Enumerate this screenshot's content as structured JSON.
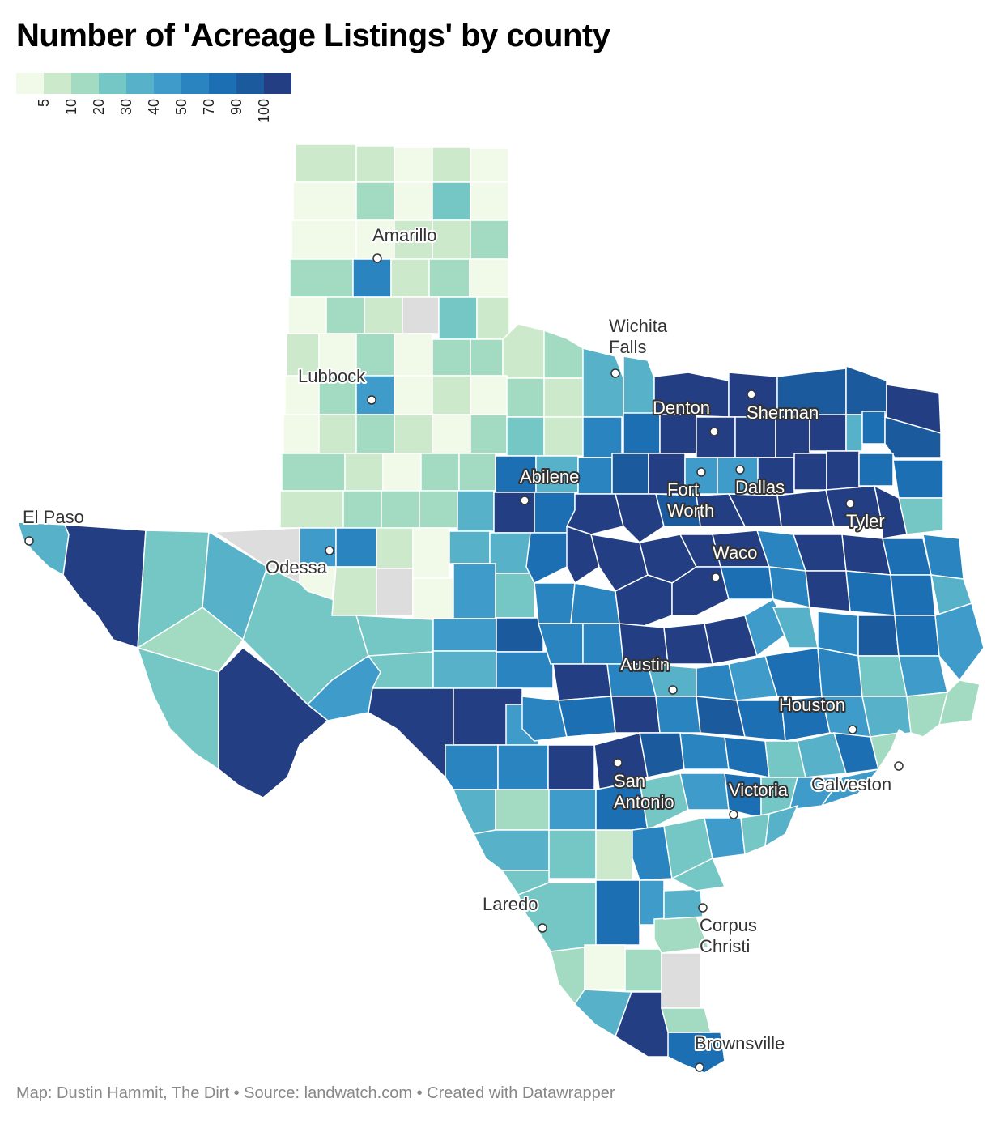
{
  "title": "Number of 'Acreage Listings' by county",
  "legend": {
    "colors": [
      "#f1f9e9",
      "#cde9cc",
      "#a3dbc2",
      "#74c7c4",
      "#56b1c9",
      "#3f9bca",
      "#2a84c0",
      "#1c6fb3",
      "#1c5a9e",
      "#233e82"
    ],
    "ticks": [
      "5",
      "10",
      "20",
      "30",
      "40",
      "50",
      "70",
      "90",
      "100"
    ]
  },
  "map": {
    "no_data_color": "#dddddd",
    "border_color": "#ffffff",
    "cities": [
      {
        "name": "Amarillo",
        "line2": "",
        "style": "outer"
      },
      {
        "name": "Lubbock",
        "line2": "",
        "style": "outer"
      },
      {
        "name": "Wichita",
        "line2": "Falls",
        "style": "outer"
      },
      {
        "name": "Denton",
        "line2": "",
        "style": "inner"
      },
      {
        "name": "Sherman",
        "line2": "",
        "style": "inner"
      },
      {
        "name": "Abilene",
        "line2": "",
        "style": "inner"
      },
      {
        "name": "Fort",
        "line2": "Worth",
        "style": "inner"
      },
      {
        "name": "Dallas",
        "line2": "",
        "style": "inner"
      },
      {
        "name": "Tyler",
        "line2": "",
        "style": "inner"
      },
      {
        "name": "El Paso",
        "line2": "",
        "style": "outer"
      },
      {
        "name": "Odessa",
        "line2": "",
        "style": "outer"
      },
      {
        "name": "Waco",
        "line2": "",
        "style": "inner"
      },
      {
        "name": "Austin",
        "line2": "",
        "style": "inner"
      },
      {
        "name": "Houston",
        "line2": "",
        "style": "inner"
      },
      {
        "name": "San",
        "line2": "Antonio",
        "style": "inner"
      },
      {
        "name": "Victoria",
        "line2": "",
        "style": "inner"
      },
      {
        "name": "Galveston",
        "line2": "",
        "style": "outer"
      },
      {
        "name": "Laredo",
        "line2": "",
        "style": "outer"
      },
      {
        "name": "Corpus",
        "line2": "Christi",
        "style": "outer"
      },
      {
        "name": "Brownsville",
        "line2": "",
        "style": "outer"
      }
    ]
  },
  "footer": "Map: Dustin Hammit, The Dirt • Source: landwatch.com • Created with Datawrapper"
}
